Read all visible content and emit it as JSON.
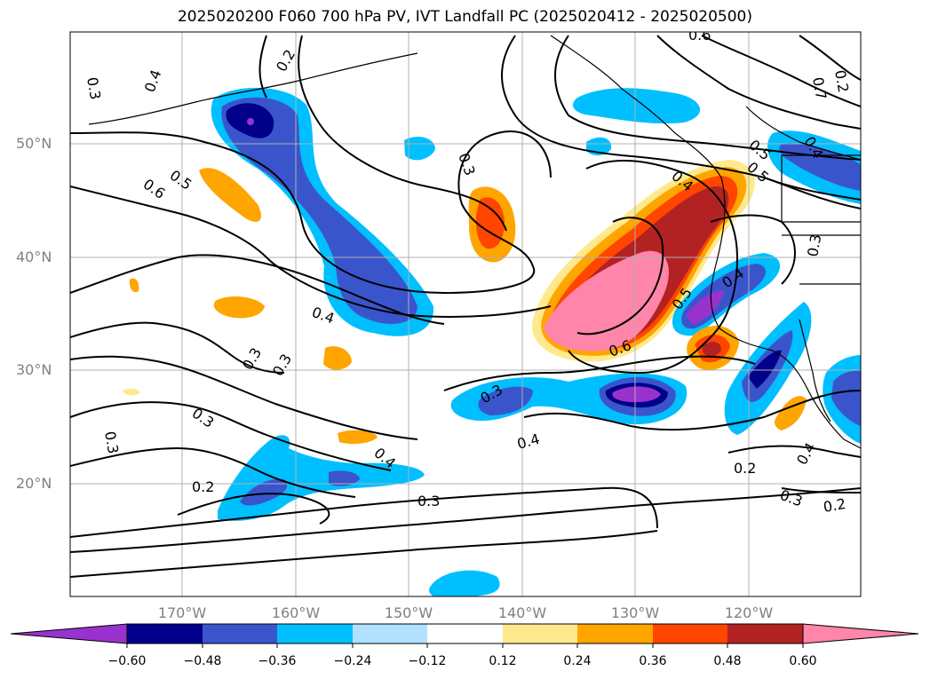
{
  "title": "2025020200 F060 700 hPa PV, IVT Landfall PC (2025020412 - 2025020500)",
  "lat_labels": [
    "50°N",
    "40°N",
    "30°N",
    "20°N"
  ],
  "lon_labels": [
    "170°W",
    "160°W",
    "150°W",
    "140°W",
    "130°W",
    "120°W"
  ],
  "contour_labels": [
    "0.3",
    "0.4",
    "0.2",
    "0.6",
    "0.5",
    "0.3",
    "0.4",
    "0.6",
    "0.5",
    "0.4",
    "0.3",
    "0.4",
    "0.3",
    "0.6",
    "0.3",
    "0.3",
    "0.4",
    "0.2",
    "0.4",
    "0.3",
    "0.2",
    "0.3",
    "0.4",
    "0.2",
    "0.3",
    "0.2",
    "0.7",
    "0.4",
    "0.5",
    "0.5",
    "0.3"
  ],
  "colorbar": {
    "ticks": [
      "−0.60",
      "−0.48",
      "−0.36",
      "−0.24",
      "−0.12",
      "0.12",
      "0.24",
      "0.36",
      "0.48",
      "0.60"
    ],
    "colors": [
      "#9932cc",
      "#00008b",
      "#3a55cc",
      "#00bfff",
      "#b0e2ff",
      "#ffffff",
      "#ffe98c",
      "#ffa500",
      "#ff4500",
      "#b22222",
      "#ff85aa"
    ]
  },
  "colors": {
    "grid": "#b0b0b0",
    "coast": "#000000",
    "contour": "#000000",
    "axis_label": "#808080"
  }
}
